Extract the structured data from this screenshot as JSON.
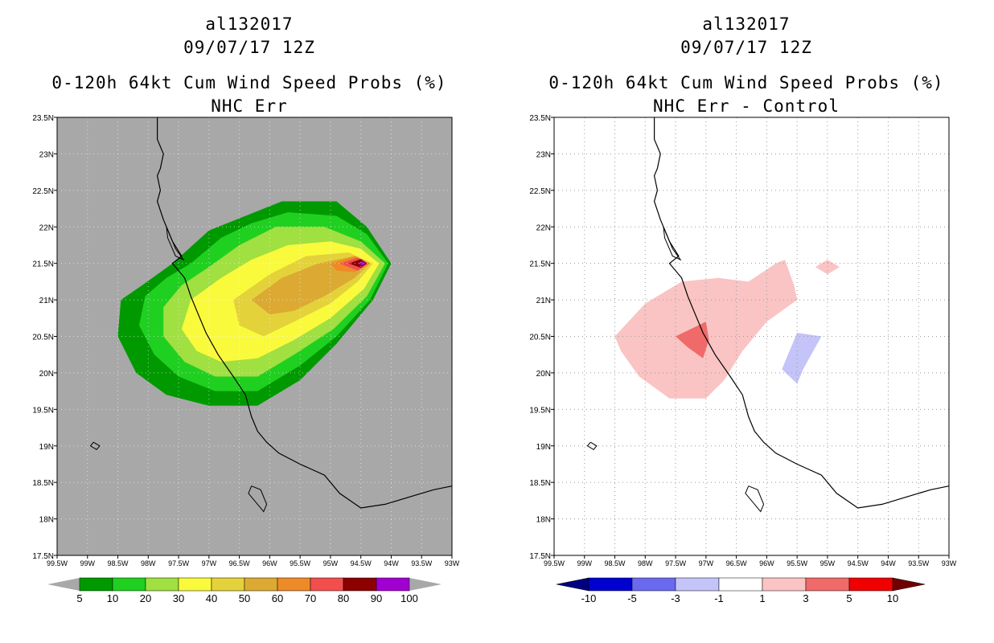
{
  "left": {
    "storm_id": "al132017",
    "date": "09/07/17 12Z",
    "title": "0-120h 64kt Cum Wind Speed Probs (%)",
    "subtitle": "NHC Err",
    "bg_color": "#a8a8a8",
    "contour_colors": [
      "#009a00",
      "#20d020",
      "#a0e040",
      "#fafa3c",
      "#e4d23a",
      "#dcaa32",
      "#ee8a28",
      "#f24e4e",
      "#8c0000",
      "#a000d2"
    ],
    "colorbar_labels": [
      "5",
      "10",
      "20",
      "30",
      "40",
      "50",
      "60",
      "70",
      "80",
      "90",
      "100"
    ],
    "colorbar_fills": [
      "#009a00",
      "#20d020",
      "#a0e040",
      "#fafa3c",
      "#e4d23a",
      "#dcaa32",
      "#ee8a28",
      "#f24e4e",
      "#8c0000",
      "#a000d2"
    ],
    "colorbar_ends": [
      "#a8a8a8",
      "#a8a8a8"
    ]
  },
  "right": {
    "storm_id": "al132017",
    "date": "09/07/17 12Z",
    "title": "0-120h 64kt Cum Wind Speed Probs (%)",
    "subtitle": "NHC Err - Control",
    "bg_color": "#ffffff",
    "colorbar_labels": [
      "-10",
      "-5",
      "-3",
      "-1",
      "1",
      "3",
      "5",
      "10"
    ],
    "colorbar_fills": [
      "#0000d0",
      "#6a6af0",
      "#c4c4f8",
      "#ffffff",
      "#fac4c4",
      "#f06a6a",
      "#f00000"
    ],
    "colorbar_ends": [
      "#000080",
      "#700000"
    ]
  },
  "axes": {
    "lat_labels": [
      "23.5N",
      "23N",
      "22.5N",
      "22N",
      "21.5N",
      "21N",
      "20.5N",
      "20N",
      "19.5N",
      "19N",
      "18.5N",
      "18N",
      "17.5N"
    ],
    "lon_labels": [
      "99.5W",
      "99W",
      "98.5W",
      "98W",
      "97.5W",
      "97W",
      "96.5W",
      "96W",
      "95.5W",
      "95W",
      "94.5W",
      "94W",
      "93.5W",
      "93W"
    ],
    "lat_range": [
      17.5,
      23.5
    ],
    "lon_range": [
      -99.5,
      -93
    ]
  },
  "left_contours": [
    {
      "level": 5,
      "points": [
        [
          -97.6,
          21.5
        ],
        [
          -97.0,
          21.95
        ],
        [
          -96.4,
          22.15
        ],
        [
          -95.8,
          22.35
        ],
        [
          -94.9,
          22.35
        ],
        [
          -94.4,
          22.0
        ],
        [
          -94.0,
          21.5
        ],
        [
          -94.3,
          21.0
        ],
        [
          -94.9,
          20.4
        ],
        [
          -95.5,
          19.9
        ],
        [
          -96.2,
          19.55
        ],
        [
          -97.0,
          19.55
        ],
        [
          -97.7,
          19.7
        ],
        [
          -98.2,
          20.0
        ],
        [
          -98.5,
          20.5
        ],
        [
          -98.45,
          21.0
        ],
        [
          -98.1,
          21.2
        ]
      ]
    },
    {
      "level": 10,
      "points": [
        [
          -97.3,
          21.5
        ],
        [
          -96.8,
          21.85
        ],
        [
          -96.3,
          22.05
        ],
        [
          -95.7,
          22.2
        ],
        [
          -94.9,
          22.15
        ],
        [
          -94.4,
          21.9
        ],
        [
          -94.05,
          21.5
        ],
        [
          -94.35,
          21.0
        ],
        [
          -94.9,
          20.5
        ],
        [
          -95.5,
          20.1
        ],
        [
          -96.2,
          19.75
        ],
        [
          -96.9,
          19.75
        ],
        [
          -97.5,
          19.95
        ],
        [
          -97.9,
          20.25
        ],
        [
          -98.15,
          20.65
        ],
        [
          -98.05,
          21.05
        ],
        [
          -97.7,
          21.3
        ]
      ]
    },
    {
      "level": 20,
      "points": [
        [
          -97.0,
          21.45
        ],
        [
          -96.5,
          21.75
        ],
        [
          -95.9,
          22.0
        ],
        [
          -95.1,
          22.0
        ],
        [
          -94.5,
          21.8
        ],
        [
          -94.1,
          21.5
        ],
        [
          -94.4,
          21.05
        ],
        [
          -94.95,
          20.6
        ],
        [
          -95.6,
          20.25
        ],
        [
          -96.2,
          19.95
        ],
        [
          -96.9,
          19.95
        ],
        [
          -97.4,
          20.15
        ],
        [
          -97.75,
          20.5
        ],
        [
          -97.75,
          20.9
        ],
        [
          -97.45,
          21.2
        ]
      ]
    },
    {
      "level": 30,
      "points": [
        [
          -96.8,
          21.3
        ],
        [
          -96.3,
          21.55
        ],
        [
          -95.7,
          21.75
        ],
        [
          -95.0,
          21.8
        ],
        [
          -94.5,
          21.7
        ],
        [
          -94.2,
          21.5
        ],
        [
          -94.45,
          21.15
        ],
        [
          -95.0,
          20.75
        ],
        [
          -95.6,
          20.45
        ],
        [
          -96.2,
          20.2
        ],
        [
          -96.8,
          20.15
        ],
        [
          -97.2,
          20.3
        ],
        [
          -97.45,
          20.6
        ],
        [
          -97.3,
          21.0
        ]
      ]
    },
    {
      "level": 40,
      "points": [
        [
          -96.6,
          21.0
        ],
        [
          -96.0,
          21.35
        ],
        [
          -95.4,
          21.6
        ],
        [
          -94.7,
          21.65
        ],
        [
          -94.3,
          21.5
        ],
        [
          -94.55,
          21.25
        ],
        [
          -95.0,
          20.95
        ],
        [
          -95.6,
          20.7
        ],
        [
          -96.1,
          20.5
        ],
        [
          -96.5,
          20.65
        ]
      ]
    },
    {
      "level": 50,
      "points": [
        [
          -96.3,
          21.0
        ],
        [
          -95.8,
          21.3
        ],
        [
          -95.2,
          21.5
        ],
        [
          -94.6,
          21.6
        ],
        [
          -94.35,
          21.5
        ],
        [
          -94.6,
          21.3
        ],
        [
          -95.1,
          21.05
        ],
        [
          -95.6,
          20.85
        ],
        [
          -96.0,
          20.8
        ]
      ]
    },
    {
      "level": 60,
      "points": [
        [
          -95.0,
          21.5
        ],
        [
          -94.6,
          21.6
        ],
        [
          -94.35,
          21.5
        ],
        [
          -94.6,
          21.38
        ],
        [
          -94.9,
          21.4
        ]
      ]
    },
    {
      "level": 70,
      "points": [
        [
          -94.85,
          21.5
        ],
        [
          -94.55,
          21.58
        ],
        [
          -94.38,
          21.5
        ],
        [
          -94.55,
          21.4
        ]
      ]
    },
    {
      "level": 80,
      "points": [
        [
          -94.7,
          21.5
        ],
        [
          -94.5,
          21.56
        ],
        [
          -94.4,
          21.5
        ],
        [
          -94.5,
          21.44
        ]
      ]
    },
    {
      "level": 90,
      "points": [
        [
          -94.55,
          21.5
        ],
        [
          -94.47,
          21.53
        ],
        [
          -94.42,
          21.5
        ],
        [
          -94.47,
          21.47
        ]
      ]
    }
  ],
  "right_contours": [
    {
      "level": 1,
      "color": "#fac4c4",
      "points": [
        [
          -98.5,
          20.5
        ],
        [
          -98.0,
          20.95
        ],
        [
          -97.4,
          21.25
        ],
        [
          -96.8,
          21.3
        ],
        [
          -96.3,
          21.25
        ],
        [
          -95.85,
          21.5
        ],
        [
          -95.7,
          21.55
        ],
        [
          -95.55,
          21.2
        ],
        [
          -95.5,
          21.0
        ],
        [
          -96.0,
          20.7
        ],
        [
          -96.4,
          20.3
        ],
        [
          -96.7,
          19.9
        ],
        [
          -97.0,
          19.65
        ],
        [
          -97.6,
          19.65
        ],
        [
          -98.1,
          19.95
        ],
        [
          -98.4,
          20.3
        ]
      ]
    },
    {
      "level": 1,
      "color": "#fac4c4",
      "points": [
        [
          -95.2,
          21.45
        ],
        [
          -95.0,
          21.55
        ],
        [
          -94.8,
          21.45
        ],
        [
          -95.0,
          21.35
        ]
      ]
    },
    {
      "level": 3,
      "color": "#f06a6a",
      "points": [
        [
          -97.5,
          20.5
        ],
        [
          -97.0,
          20.7
        ],
        [
          -96.95,
          20.45
        ],
        [
          -97.05,
          20.2
        ],
        [
          -97.3,
          20.35
        ]
      ]
    },
    {
      "level": -1,
      "color": "#c4c4f8",
      "points": [
        [
          -95.75,
          20.05
        ],
        [
          -95.5,
          20.55
        ],
        [
          -95.1,
          20.5
        ],
        [
          -95.4,
          20.05
        ],
        [
          -95.5,
          19.85
        ]
      ]
    }
  ]
}
